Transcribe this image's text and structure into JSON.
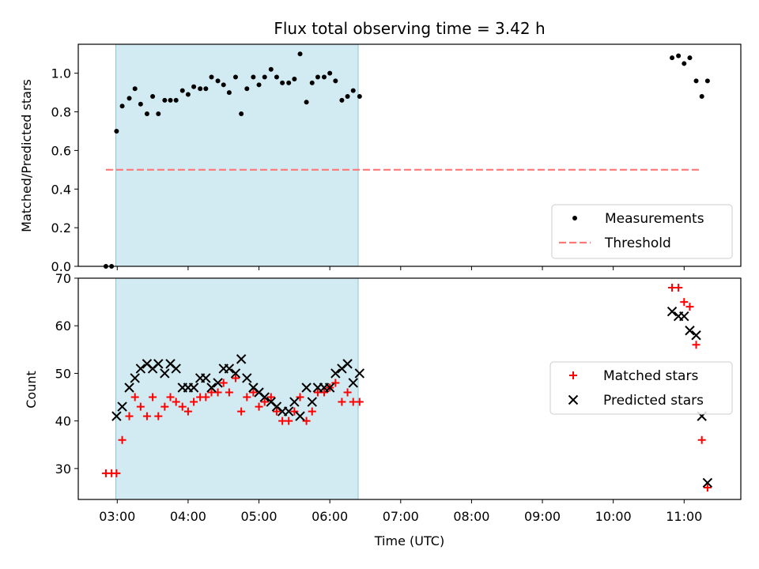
{
  "chart_data": [
    {
      "type": "scatter",
      "title": "Flux total observing time = 3.42 h",
      "xlabel": "",
      "ylabel": "Matched/Predicted stars",
      "ylim": [
        0.0,
        1.15
      ],
      "yticks": [
        "0.0",
        "0.2",
        "0.4",
        "0.6",
        "0.8",
        "1.0"
      ],
      "ytick_values": [
        0.0,
        0.2,
        0.4,
        0.6,
        0.8,
        1.0
      ],
      "x_unit": "hours UTC",
      "xlim": [
        2.45,
        11.8
      ],
      "grid": false,
      "legend": "bottom-right",
      "shaded_interval": {
        "from": 2.98,
        "to": 6.4,
        "color": "#add8e6"
      },
      "series": [
        {
          "name": "Measurements",
          "marker": "dot",
          "color": "#000000",
          "points": [
            [
              2.84,
              0.0
            ],
            [
              2.92,
              0.0
            ],
            [
              2.99,
              0.7
            ],
            [
              3.07,
              0.83
            ],
            [
              3.17,
              0.87
            ],
            [
              3.25,
              0.92
            ],
            [
              3.33,
              0.84
            ],
            [
              3.42,
              0.79
            ],
            [
              3.5,
              0.88
            ],
            [
              3.58,
              0.79
            ],
            [
              3.67,
              0.86
            ],
            [
              3.75,
              0.86
            ],
            [
              3.83,
              0.86
            ],
            [
              3.92,
              0.91
            ],
            [
              4.0,
              0.89
            ],
            [
              4.08,
              0.93
            ],
            [
              4.17,
              0.92
            ],
            [
              4.25,
              0.92
            ],
            [
              4.33,
              0.98
            ],
            [
              4.42,
              0.96
            ],
            [
              4.5,
              0.94
            ],
            [
              4.58,
              0.9
            ],
            [
              4.67,
              0.98
            ],
            [
              4.75,
              0.79
            ],
            [
              4.83,
              0.92
            ],
            [
              4.92,
              0.98
            ],
            [
              5.0,
              0.94
            ],
            [
              5.08,
              0.98
            ],
            [
              5.17,
              1.02
            ],
            [
              5.25,
              0.98
            ],
            [
              5.33,
              0.95
            ],
            [
              5.42,
              0.95
            ],
            [
              5.5,
              0.97
            ],
            [
              5.58,
              1.1
            ],
            [
              5.67,
              0.85
            ],
            [
              5.75,
              0.95
            ],
            [
              5.83,
              0.98
            ],
            [
              5.92,
              0.98
            ],
            [
              6.0,
              1.0
            ],
            [
              6.08,
              0.96
            ],
            [
              6.17,
              0.86
            ],
            [
              6.25,
              0.88
            ],
            [
              6.33,
              0.91
            ],
            [
              6.42,
              0.88
            ],
            [
              10.83,
              1.08
            ],
            [
              10.92,
              1.09
            ],
            [
              11.0,
              1.05
            ],
            [
              11.08,
              1.08
            ],
            [
              11.17,
              0.96
            ],
            [
              11.25,
              0.88
            ],
            [
              11.33,
              0.96
            ]
          ]
        },
        {
          "name": "Threshold",
          "style": "dashed",
          "color": "#ff7777",
          "points": [
            [
              2.84,
              0.5
            ],
            [
              11.25,
              0.5
            ]
          ]
        }
      ]
    },
    {
      "type": "scatter",
      "title": "",
      "xlabel": "Time (UTC)",
      "ylabel": "Count",
      "ylim": [
        23.5,
        70
      ],
      "yticks": [
        "30",
        "40",
        "50",
        "60",
        "70"
      ],
      "ytick_values": [
        30,
        40,
        50,
        60,
        70
      ],
      "x_unit": "hours UTC",
      "xlim": [
        2.45,
        11.8
      ],
      "xticks": [
        "03:00",
        "04:00",
        "05:00",
        "06:00",
        "07:00",
        "08:00",
        "09:00",
        "10:00",
        "11:00"
      ],
      "xtick_values": [
        3,
        4,
        5,
        6,
        7,
        8,
        9,
        10,
        11
      ],
      "grid": false,
      "legend": "center-right",
      "shaded_interval": {
        "from": 2.98,
        "to": 6.4,
        "color": "#add8e6"
      },
      "series": [
        {
          "name": "Matched stars",
          "marker": "plus",
          "color": "#ff0000",
          "points": [
            [
              2.84,
              29
            ],
            [
              2.92,
              29
            ],
            [
              2.99,
              29
            ],
            [
              3.07,
              36
            ],
            [
              3.17,
              41
            ],
            [
              3.25,
              45
            ],
            [
              3.33,
              43
            ],
            [
              3.42,
              41
            ],
            [
              3.5,
              45
            ],
            [
              3.58,
              41
            ],
            [
              3.67,
              43
            ],
            [
              3.75,
              45
            ],
            [
              3.83,
              44
            ],
            [
              3.92,
              43
            ],
            [
              4.0,
              42
            ],
            [
              4.08,
              44
            ],
            [
              4.17,
              45
            ],
            [
              4.25,
              45
            ],
            [
              4.33,
              46
            ],
            [
              4.42,
              46
            ],
            [
              4.5,
              48
            ],
            [
              4.58,
              46
            ],
            [
              4.67,
              49
            ],
            [
              4.75,
              42
            ],
            [
              4.83,
              45
            ],
            [
              4.92,
              46
            ],
            [
              5.0,
              43
            ],
            [
              5.08,
              44
            ],
            [
              5.17,
              45
            ],
            [
              5.25,
              42
            ],
            [
              5.33,
              40
            ],
            [
              5.42,
              40
            ],
            [
              5.5,
              42
            ],
            [
              5.58,
              45
            ],
            [
              5.67,
              40
            ],
            [
              5.75,
              42
            ],
            [
              5.83,
              46
            ],
            [
              5.92,
              46
            ],
            [
              6.0,
              47
            ],
            [
              6.08,
              48
            ],
            [
              6.17,
              44
            ],
            [
              6.25,
              46
            ],
            [
              6.33,
              44
            ],
            [
              6.42,
              44
            ],
            [
              10.83,
              68
            ],
            [
              10.92,
              68
            ],
            [
              11.0,
              65
            ],
            [
              11.08,
              64
            ],
            [
              11.17,
              56
            ],
            [
              11.25,
              36
            ],
            [
              11.33,
              26
            ]
          ]
        },
        {
          "name": "Predicted stars",
          "marker": "x",
          "color": "#000000",
          "points": [
            [
              2.99,
              41
            ],
            [
              3.07,
              43
            ],
            [
              3.17,
              47
            ],
            [
              3.25,
              49
            ],
            [
              3.33,
              51
            ],
            [
              3.42,
              52
            ],
            [
              3.5,
              51
            ],
            [
              3.58,
              52
            ],
            [
              3.67,
              50
            ],
            [
              3.75,
              52
            ],
            [
              3.83,
              51
            ],
            [
              3.92,
              47
            ],
            [
              4.0,
              47
            ],
            [
              4.08,
              47
            ],
            [
              4.17,
              49
            ],
            [
              4.25,
              49
            ],
            [
              4.33,
              47
            ],
            [
              4.42,
              48
            ],
            [
              4.5,
              51
            ],
            [
              4.58,
              51
            ],
            [
              4.67,
              50
            ],
            [
              4.75,
              53
            ],
            [
              4.83,
              49
            ],
            [
              4.92,
              47
            ],
            [
              5.0,
              46
            ],
            [
              5.08,
              45
            ],
            [
              5.17,
              44
            ],
            [
              5.25,
              43
            ],
            [
              5.33,
              42
            ],
            [
              5.42,
              42
            ],
            [
              5.5,
              44
            ],
            [
              5.58,
              41
            ],
            [
              5.67,
              47
            ],
            [
              5.75,
              44
            ],
            [
              5.83,
              47
            ],
            [
              5.92,
              47
            ],
            [
              6.0,
              47
            ],
            [
              6.08,
              50
            ],
            [
              6.17,
              51
            ],
            [
              6.25,
              52
            ],
            [
              6.33,
              48
            ],
            [
              6.42,
              50
            ],
            [
              10.83,
              63
            ],
            [
              10.92,
              62
            ],
            [
              11.0,
              62
            ],
            [
              11.08,
              59
            ],
            [
              11.17,
              58
            ],
            [
              11.25,
              41
            ],
            [
              11.33,
              27
            ]
          ]
        }
      ]
    }
  ]
}
